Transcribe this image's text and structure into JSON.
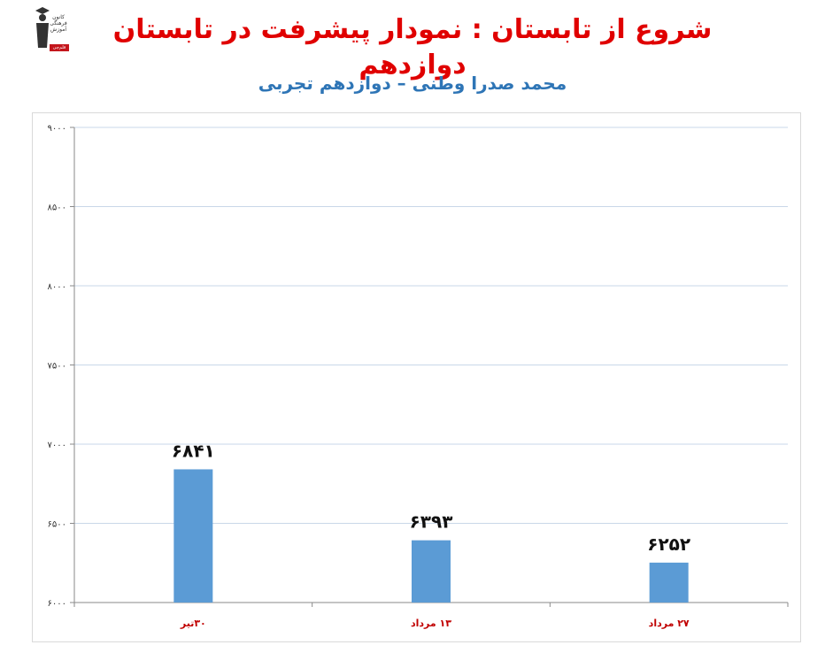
{
  "header": {
    "title": "شروع از تابستان : نمودار پیشرفت در تابستان دوازدهم",
    "subtitle": "محمد صدرا وطنی – دوازدهم تجربی",
    "logo_text": "کانون فرهنگی آموزش",
    "logo_tag": "قلم‌چی"
  },
  "colors": {
    "title": "#e00000",
    "subtitle": "#2e75b6",
    "bar": "#5b9bd5",
    "category_label": "#c00000",
    "gridline": "#c9d7e8"
  },
  "chart_data": {
    "type": "bar",
    "categories": [
      "۳۰تیر",
      "۱۳ مرداد",
      "۲۷ مرداد"
    ],
    "values": [
      6841,
      6393,
      6252
    ],
    "value_labels": [
      "۶۸۴۱",
      "۶۳۹۳",
      "۶۲۵۲"
    ],
    "ylim": [
      6000,
      9000
    ],
    "yticks": [
      6000,
      6500,
      7000,
      7500,
      8000,
      8500,
      9000
    ],
    "ytick_labels": [
      "۶۰۰۰",
      "۶۵۰۰",
      "۷۰۰۰",
      "۷۵۰۰",
      "۸۰۰۰",
      "۸۵۰۰",
      "۹۰۰۰"
    ],
    "grid": true,
    "legend": "none"
  }
}
